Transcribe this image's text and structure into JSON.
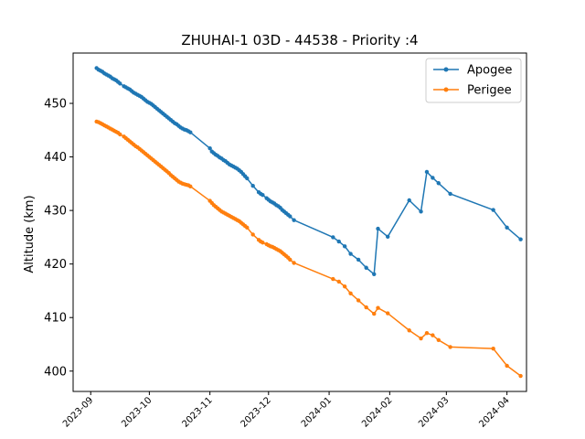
{
  "chart_data": {
    "type": "line",
    "title": "ZHUHAI-1 03D - 44538 - Priority :4",
    "xlabel": "",
    "ylabel": "Altitude (km)",
    "xlim": [
      "2023-08-23",
      "2024-04-11"
    ],
    "ylim": [
      396.2,
      459.4
    ],
    "grid": false,
    "legend_position": "top-right",
    "x_ticks": [
      "2023-09",
      "2023-10",
      "2023-11",
      "2023-12",
      "2024-01",
      "2024-02",
      "2024-03",
      "2024-04"
    ],
    "y_ticks": [
      400,
      410,
      420,
      430,
      440,
      450
    ],
    "series": [
      {
        "name": "Apogee",
        "color": "#1f77b4",
        "points": [
          [
            "2023-09-04",
            456.6
          ],
          [
            "2023-09-05",
            456.3
          ],
          [
            "2023-09-06",
            456.1
          ],
          [
            "2023-09-07",
            455.9
          ],
          [
            "2023-09-08",
            455.6
          ],
          [
            "2023-09-09",
            455.4
          ],
          [
            "2023-09-10",
            455.2
          ],
          [
            "2023-09-11",
            455.0
          ],
          [
            "2023-09-12",
            454.7
          ],
          [
            "2023-09-13",
            454.5
          ],
          [
            "2023-09-14",
            454.3
          ],
          [
            "2023-09-15",
            454.0
          ],
          [
            "2023-09-16",
            453.7
          ],
          [
            "2023-09-18",
            453.2
          ],
          [
            "2023-09-19",
            453.0
          ],
          [
            "2023-09-20",
            452.8
          ],
          [
            "2023-09-21",
            452.6
          ],
          [
            "2023-09-22",
            452.3
          ],
          [
            "2023-09-23",
            452.0
          ],
          [
            "2023-09-24",
            451.8
          ],
          [
            "2023-09-25",
            451.6
          ],
          [
            "2023-09-26",
            451.4
          ],
          [
            "2023-09-27",
            451.2
          ],
          [
            "2023-09-28",
            450.9
          ],
          [
            "2023-09-29",
            450.6
          ],
          [
            "2023-09-30",
            450.3
          ],
          [
            "2023-10-01",
            450.1
          ],
          [
            "2023-10-02",
            449.9
          ],
          [
            "2023-10-03",
            449.6
          ],
          [
            "2023-10-04",
            449.3
          ],
          [
            "2023-10-05",
            449.0
          ],
          [
            "2023-10-06",
            448.7
          ],
          [
            "2023-10-07",
            448.4
          ],
          [
            "2023-10-08",
            448.1
          ],
          [
            "2023-10-09",
            447.8
          ],
          [
            "2023-10-10",
            447.5
          ],
          [
            "2023-10-11",
            447.2
          ],
          [
            "2023-10-12",
            446.9
          ],
          [
            "2023-10-13",
            446.6
          ],
          [
            "2023-10-14",
            446.3
          ],
          [
            "2023-10-15",
            446.1
          ],
          [
            "2023-10-16",
            445.8
          ],
          [
            "2023-10-17",
            445.5
          ],
          [
            "2023-10-18",
            445.3
          ],
          [
            "2023-10-19",
            445.1
          ],
          [
            "2023-10-20",
            445.0
          ],
          [
            "2023-10-21",
            444.8
          ],
          [
            "2023-10-22",
            444.6
          ],
          [
            "2023-11-01",
            441.6
          ],
          [
            "2023-11-02",
            441.0
          ],
          [
            "2023-11-03",
            440.7
          ],
          [
            "2023-11-04",
            440.4
          ],
          [
            "2023-11-05",
            440.2
          ],
          [
            "2023-11-06",
            439.9
          ],
          [
            "2023-11-07",
            439.7
          ],
          [
            "2023-11-08",
            439.4
          ],
          [
            "2023-11-09",
            439.2
          ],
          [
            "2023-11-10",
            438.9
          ],
          [
            "2023-11-11",
            438.6
          ],
          [
            "2023-11-12",
            438.4
          ],
          [
            "2023-11-13",
            438.2
          ],
          [
            "2023-11-14",
            438.0
          ],
          [
            "2023-11-15",
            437.8
          ],
          [
            "2023-11-16",
            437.5
          ],
          [
            "2023-11-17",
            437.2
          ],
          [
            "2023-11-18",
            436.8
          ],
          [
            "2023-11-19",
            436.4
          ],
          [
            "2023-11-20",
            436.0
          ],
          [
            "2023-11-23",
            434.6
          ],
          [
            "2023-11-26",
            433.4
          ],
          [
            "2023-11-27",
            433.1
          ],
          [
            "2023-11-28",
            432.9
          ],
          [
            "2023-11-30",
            432.3
          ],
          [
            "2023-12-01",
            432.0
          ],
          [
            "2023-12-02",
            431.7
          ],
          [
            "2023-12-03",
            431.5
          ],
          [
            "2023-12-04",
            431.3
          ],
          [
            "2023-12-05",
            431.0
          ],
          [
            "2023-12-06",
            430.8
          ],
          [
            "2023-12-07",
            430.5
          ],
          [
            "2023-12-08",
            430.1
          ],
          [
            "2023-12-09",
            429.8
          ],
          [
            "2023-12-10",
            429.5
          ],
          [
            "2023-12-11",
            429.2
          ],
          [
            "2023-12-12",
            428.9
          ],
          [
            "2023-12-14",
            428.2
          ],
          [
            "2024-01-03",
            425.0
          ],
          [
            "2024-01-06",
            424.2
          ],
          [
            "2024-01-09",
            423.3
          ],
          [
            "2024-01-12",
            421.9
          ],
          [
            "2024-01-16",
            420.8
          ],
          [
            "2024-01-20",
            419.3
          ],
          [
            "2024-01-24",
            418.1
          ],
          [
            "2024-01-26",
            426.6
          ],
          [
            "2024-01-31",
            425.1
          ],
          [
            "2024-02-11",
            431.9
          ],
          [
            "2024-02-17",
            429.8
          ],
          [
            "2024-02-20",
            437.2
          ],
          [
            "2024-02-23",
            436.1
          ],
          [
            "2024-02-26",
            435.1
          ],
          [
            "2024-03-03",
            433.1
          ],
          [
            "2024-03-25",
            430.1
          ],
          [
            "2024-04-01",
            426.8
          ],
          [
            "2024-04-08",
            424.6
          ]
        ]
      },
      {
        "name": "Perigee",
        "color": "#ff7f0e",
        "points": [
          [
            "2023-09-04",
            446.6
          ],
          [
            "2023-09-05",
            446.5
          ],
          [
            "2023-09-06",
            446.3
          ],
          [
            "2023-09-07",
            446.1
          ],
          [
            "2023-09-08",
            445.9
          ],
          [
            "2023-09-09",
            445.7
          ],
          [
            "2023-09-10",
            445.5
          ],
          [
            "2023-09-11",
            445.3
          ],
          [
            "2023-09-12",
            445.1
          ],
          [
            "2023-09-13",
            444.9
          ],
          [
            "2023-09-14",
            444.7
          ],
          [
            "2023-09-15",
            444.5
          ],
          [
            "2023-09-16",
            444.2
          ],
          [
            "2023-09-18",
            443.8
          ],
          [
            "2023-09-19",
            443.5
          ],
          [
            "2023-09-20",
            443.2
          ],
          [
            "2023-09-21",
            442.9
          ],
          [
            "2023-09-22",
            442.6
          ],
          [
            "2023-09-23",
            442.3
          ],
          [
            "2023-09-24",
            442.0
          ],
          [
            "2023-09-25",
            441.8
          ],
          [
            "2023-09-26",
            441.5
          ],
          [
            "2023-09-27",
            441.2
          ],
          [
            "2023-09-28",
            440.9
          ],
          [
            "2023-09-29",
            440.6
          ],
          [
            "2023-09-30",
            440.3
          ],
          [
            "2023-10-01",
            440.0
          ],
          [
            "2023-10-02",
            439.7
          ],
          [
            "2023-10-03",
            439.4
          ],
          [
            "2023-10-04",
            439.1
          ],
          [
            "2023-10-05",
            438.8
          ],
          [
            "2023-10-06",
            438.5
          ],
          [
            "2023-10-07",
            438.2
          ],
          [
            "2023-10-08",
            437.9
          ],
          [
            "2023-10-09",
            437.6
          ],
          [
            "2023-10-10",
            437.3
          ],
          [
            "2023-10-11",
            437.0
          ],
          [
            "2023-10-12",
            436.6
          ],
          [
            "2023-10-13",
            436.3
          ],
          [
            "2023-10-14",
            436.0
          ],
          [
            "2023-10-15",
            435.7
          ],
          [
            "2023-10-16",
            435.4
          ],
          [
            "2023-10-17",
            435.2
          ],
          [
            "2023-10-18",
            435.0
          ],
          [
            "2023-10-19",
            434.9
          ],
          [
            "2023-10-20",
            434.8
          ],
          [
            "2023-10-21",
            434.7
          ],
          [
            "2023-10-22",
            434.5
          ],
          [
            "2023-11-01",
            431.8
          ],
          [
            "2023-11-02",
            431.4
          ],
          [
            "2023-11-03",
            431.0
          ],
          [
            "2023-11-04",
            430.7
          ],
          [
            "2023-11-05",
            430.4
          ],
          [
            "2023-11-06",
            430.1
          ],
          [
            "2023-11-07",
            429.8
          ],
          [
            "2023-11-08",
            429.6
          ],
          [
            "2023-11-09",
            429.4
          ],
          [
            "2023-11-10",
            429.2
          ],
          [
            "2023-11-11",
            429.0
          ],
          [
            "2023-11-12",
            428.8
          ],
          [
            "2023-11-13",
            428.6
          ],
          [
            "2023-11-14",
            428.4
          ],
          [
            "2023-11-15",
            428.2
          ],
          [
            "2023-11-16",
            428.0
          ],
          [
            "2023-11-17",
            427.7
          ],
          [
            "2023-11-18",
            427.4
          ],
          [
            "2023-11-19",
            427.1
          ],
          [
            "2023-11-20",
            426.8
          ],
          [
            "2023-11-23",
            425.5
          ],
          [
            "2023-11-26",
            424.5
          ],
          [
            "2023-11-27",
            424.2
          ],
          [
            "2023-11-28",
            424.0
          ],
          [
            "2023-11-30",
            423.7
          ],
          [
            "2023-12-01",
            423.5
          ],
          [
            "2023-12-02",
            423.3
          ],
          [
            "2023-12-03",
            423.2
          ],
          [
            "2023-12-04",
            423.0
          ],
          [
            "2023-12-05",
            422.8
          ],
          [
            "2023-12-06",
            422.6
          ],
          [
            "2023-12-07",
            422.4
          ],
          [
            "2023-12-08",
            422.1
          ],
          [
            "2023-12-09",
            421.8
          ],
          [
            "2023-12-10",
            421.5
          ],
          [
            "2023-12-11",
            421.2
          ],
          [
            "2023-12-12",
            420.8
          ],
          [
            "2023-12-14",
            420.2
          ],
          [
            "2024-01-03",
            417.2
          ],
          [
            "2024-01-06",
            416.7
          ],
          [
            "2024-01-09",
            415.8
          ],
          [
            "2024-01-12",
            414.5
          ],
          [
            "2024-01-16",
            413.2
          ],
          [
            "2024-01-20",
            411.9
          ],
          [
            "2024-01-24",
            410.7
          ],
          [
            "2024-01-26",
            411.8
          ],
          [
            "2024-01-31",
            410.8
          ],
          [
            "2024-02-11",
            407.6
          ],
          [
            "2024-02-17",
            406.1
          ],
          [
            "2024-02-20",
            407.1
          ],
          [
            "2024-02-23",
            406.7
          ],
          [
            "2024-02-26",
            405.8
          ],
          [
            "2024-03-03",
            404.5
          ],
          [
            "2024-03-25",
            404.2
          ],
          [
            "2024-04-01",
            401.0
          ],
          [
            "2024-04-08",
            399.1
          ]
        ]
      }
    ]
  }
}
